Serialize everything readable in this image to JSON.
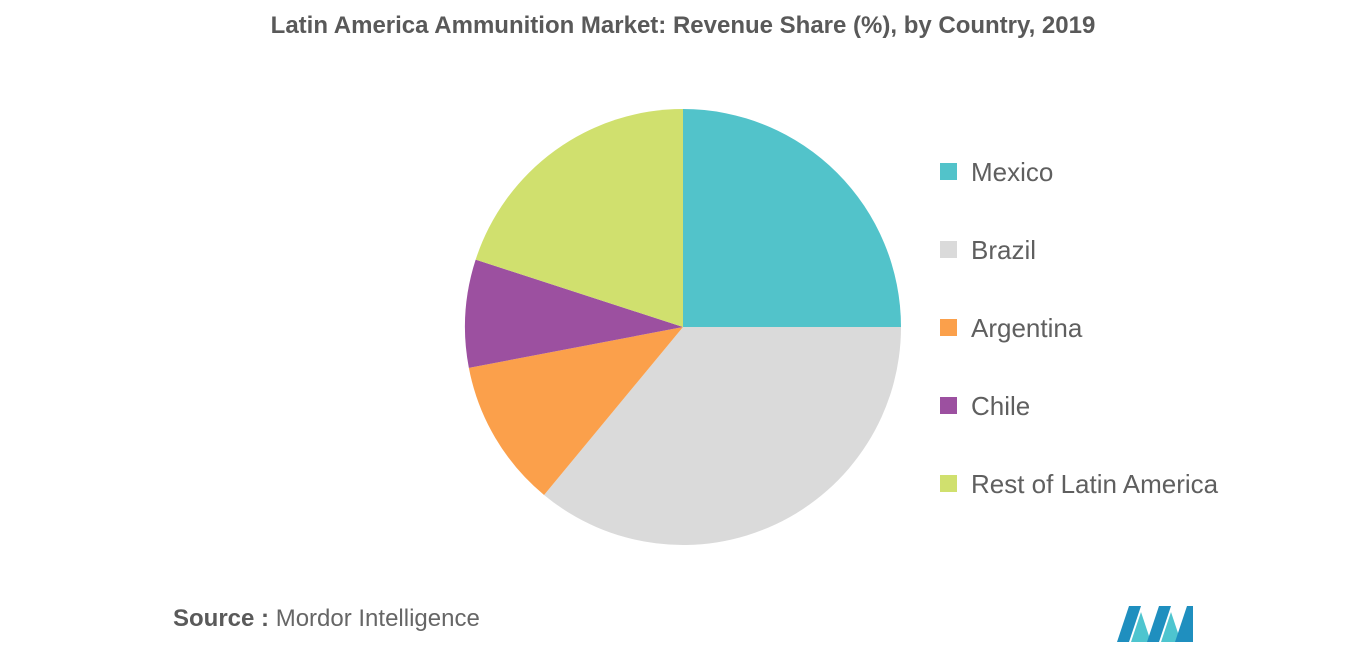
{
  "chart_data": {
    "type": "pie",
    "title": "Latin America Ammunition Market: Revenue Share (%), by Country, 2019",
    "categories": [
      "Mexico",
      "Brazil",
      "Argentina",
      "Chile",
      "Rest of Latin America"
    ],
    "values": [
      25,
      36,
      11,
      8,
      20
    ],
    "colors": [
      "#52c3ca",
      "#dadada",
      "#fba04b",
      "#9c50a0",
      "#d0e06e"
    ],
    "legend_position": "right",
    "start_angle": "12 o'clock",
    "direction": "clockwise"
  },
  "source": {
    "label": "Source :",
    "text": "Mordor Intelligence"
  },
  "logo": {
    "icon": "mordor-intelligence-logo",
    "colors": [
      "#1f8fbf",
      "#4ec5cf"
    ]
  }
}
